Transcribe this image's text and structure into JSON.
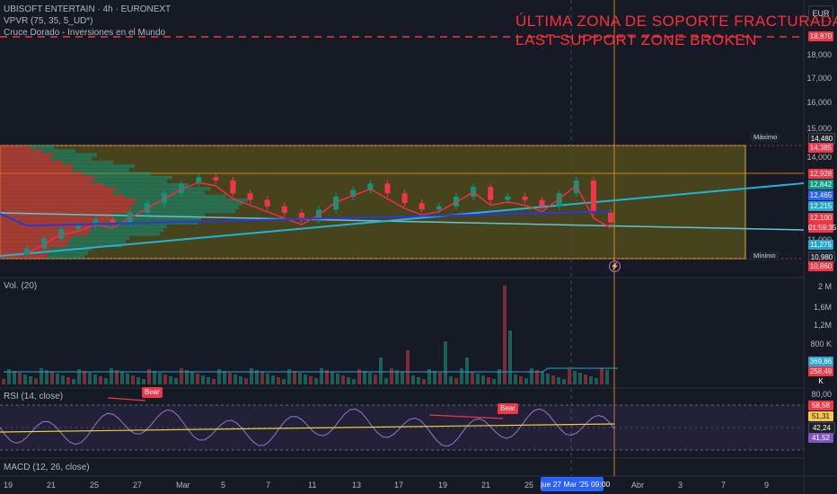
{
  "header": {
    "symbol_line": "UBISOFT ENTERTAIN · 4h · EURONEXT",
    "indicator_1": "VPVR (75, 35, 5_UD*)",
    "indicator_2": "Cruce Dorado - Inversiones en el Mundo",
    "currency": "EUR"
  },
  "banner": {
    "line1": "ÚLTIMA ZONA DE SOPORTE FRACTURADA",
    "line2": "LAST SUPPORT ZONE BROKEN"
  },
  "price_axis": {
    "ticks": [
      "18,000",
      "17,000",
      "16,000",
      "15,000",
      "14,000",
      "11,000"
    ],
    "tags": [
      {
        "text": "18,870",
        "color": "#f23645"
      },
      {
        "text": "14,480",
        "color": "#1e222d"
      },
      {
        "text": "14,385",
        "color": "#f23645"
      },
      {
        "text": "12,928",
        "color": "#f23645"
      },
      {
        "text": "12,842",
        "color": "#089981"
      },
      {
        "text": "12,465",
        "color": "#2962ff"
      },
      {
        "text": "12,215",
        "color": "#26a6d1"
      },
      {
        "text": "12,100",
        "color": "#f23645"
      },
      {
        "text": "01:59:35",
        "color": "#f23645"
      },
      {
        "text": "11,275",
        "color": "#26a6d1"
      },
      {
        "text": "10,980",
        "color": "#1e222d"
      },
      {
        "text": "10,860",
        "color": "#f23645"
      }
    ],
    "max_label": "Máximo",
    "min_label": "Mínimo"
  },
  "volume": {
    "title": "Vol. (20)",
    "ticks": [
      "2 M",
      "1,6M",
      "1,2M",
      "800 K"
    ],
    "tags": [
      {
        "text": "369,86 K",
        "color": "#26a6d1"
      },
      {
        "text": "258,49 K",
        "color": "#f23645"
      }
    ]
  },
  "rsi": {
    "title": "RSI (14, close)",
    "ticks": [
      "80,00"
    ],
    "tags": [
      {
        "text": "58,58",
        "color": "#f23645"
      },
      {
        "text": "51,31",
        "color": "#f7c948"
      },
      {
        "text": "42,24",
        "color": "#1e222d"
      },
      {
        "text": "41,52",
        "color": "#7e57c2"
      }
    ],
    "bear_label_1": "Bear",
    "bear_label_2": "Bear"
  },
  "macd": {
    "title": "MACD (12, 26, close)"
  },
  "time_axis": {
    "labels": [
      "19",
      "21",
      "25",
      "27",
      "Mar",
      "5",
      "7",
      "11",
      "13",
      "17",
      "19",
      "21",
      "25",
      "Abr",
      "3",
      "7",
      "9"
    ],
    "current": "jue 27 Mar '25   09:00"
  },
  "chart_data": {
    "type": "candlestick",
    "symbol": "UBISOFT ENTERTAIN",
    "timeframe": "4h",
    "resistance_zone": [
      10.98,
      14.48
    ],
    "dashed_level": 18.87,
    "ohlc_close_estimates": [
      11.3,
      11.6,
      11.9,
      12.0,
      12.2,
      12.1,
      12.4,
      12.7,
      13.0,
      13.3,
      13.5,
      13.4,
      13.0,
      12.8,
      12.6,
      12.4,
      12.2,
      12.5,
      12.9,
      13.1,
      13.3,
      13.0,
      12.7,
      12.5,
      12.6,
      12.9,
      13.2,
      12.8,
      12.9,
      12.8,
      12.6,
      13.0,
      13.4,
      12.4,
      12.1
    ],
    "rsi_last": 41.52
  }
}
